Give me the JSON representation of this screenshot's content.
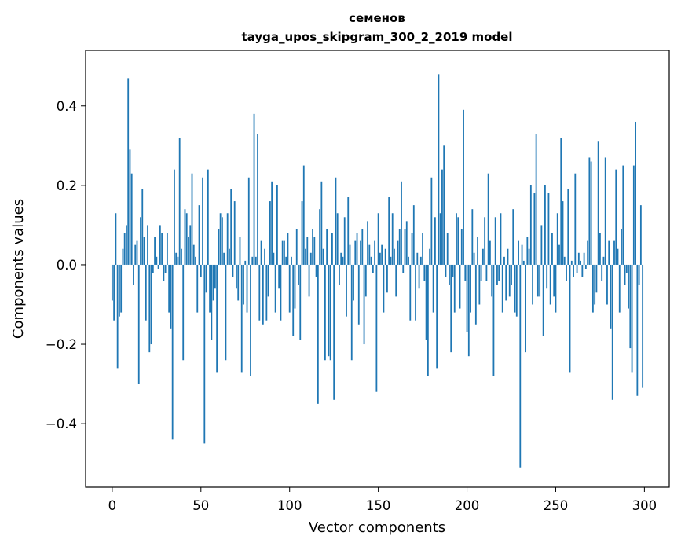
{
  "chart_data": {
    "type": "bar",
    "title": "семенов",
    "subtitle": "tayga_upos_skipgram_300_2_2019 model",
    "xlabel": "Vector components",
    "ylabel": "Components values",
    "xlim": [
      -15,
      314
    ],
    "ylim": [
      -0.56,
      0.54
    ],
    "xticks": [
      0,
      50,
      100,
      150,
      200,
      250,
      300
    ],
    "yticks": [
      -0.4,
      -0.2,
      0.0,
      0.2,
      0.4
    ],
    "ytick_labels": [
      "−0.4",
      "−0.2",
      "0.0",
      "0.2",
      "0.4"
    ],
    "bar_color": "#1f77b4",
    "grid": false,
    "x": [
      0,
      1,
      2,
      3,
      4,
      5,
      6,
      7,
      8,
      9,
      10,
      11,
      12,
      13,
      14,
      15,
      16,
      17,
      18,
      19,
      20,
      21,
      22,
      23,
      24,
      25,
      26,
      27,
      28,
      29,
      30,
      31,
      32,
      33,
      34,
      35,
      36,
      37,
      38,
      39,
      40,
      41,
      42,
      43,
      44,
      45,
      46,
      47,
      48,
      49,
      50,
      51,
      52,
      53,
      54,
      55,
      56,
      57,
      58,
      59,
      60,
      61,
      62,
      63,
      64,
      65,
      66,
      67,
      68,
      69,
      70,
      71,
      72,
      73,
      74,
      75,
      76,
      77,
      78,
      79,
      80,
      81,
      82,
      83,
      84,
      85,
      86,
      87,
      88,
      89,
      90,
      91,
      92,
      93,
      94,
      95,
      96,
      97,
      98,
      99,
      100,
      101,
      102,
      103,
      104,
      105,
      106,
      107,
      108,
      109,
      110,
      111,
      112,
      113,
      114,
      115,
      116,
      117,
      118,
      119,
      120,
      121,
      122,
      123,
      124,
      125,
      126,
      127,
      128,
      129,
      130,
      131,
      132,
      133,
      134,
      135,
      136,
      137,
      138,
      139,
      140,
      141,
      142,
      143,
      144,
      145,
      146,
      147,
      148,
      149,
      150,
      151,
      152,
      153,
      154,
      155,
      156,
      157,
      158,
      159,
      160,
      161,
      162,
      163,
      164,
      165,
      166,
      167,
      168,
      169,
      170,
      171,
      172,
      173,
      174,
      175,
      176,
      177,
      178,
      179,
      180,
      181,
      182,
      183,
      184,
      185,
      186,
      187,
      188,
      189,
      190,
      191,
      192,
      193,
      194,
      195,
      196,
      197,
      198,
      199,
      200,
      201,
      202,
      203,
      204,
      205,
      206,
      207,
      208,
      209,
      210,
      211,
      212,
      213,
      214,
      215,
      216,
      217,
      218,
      219,
      220,
      221,
      222,
      223,
      224,
      225,
      226,
      227,
      228,
      229,
      230,
      231,
      232,
      233,
      234,
      235,
      236,
      237,
      238,
      239,
      240,
      241,
      242,
      243,
      244,
      245,
      246,
      247,
      248,
      249,
      250,
      251,
      252,
      253,
      254,
      255,
      256,
      257,
      258,
      259,
      260,
      261,
      262,
      263,
      264,
      265,
      266,
      267,
      268,
      269,
      270,
      271,
      272,
      273,
      274,
      275,
      276,
      277,
      278,
      279,
      280,
      281,
      282,
      283,
      284,
      285,
      286,
      287,
      288,
      289,
      290,
      291,
      292,
      293,
      294,
      295,
      296,
      297,
      298,
      299
    ],
    "values": [
      -0.09,
      -0.14,
      0.13,
      -0.26,
      -0.13,
      -0.12,
      0.04,
      0.08,
      0.1,
      0.47,
      0.29,
      0.23,
      -0.05,
      0.05,
      0.06,
      -0.3,
      0.12,
      0.19,
      0.07,
      -0.14,
      0.1,
      -0.22,
      -0.2,
      -0.02,
      0.07,
      0.02,
      -0.01,
      0.1,
      0.08,
      -0.04,
      -0.02,
      0.08,
      -0.12,
      -0.16,
      -0.44,
      0.24,
      0.03,
      0.02,
      0.32,
      0.04,
      -0.24,
      0.14,
      0.13,
      0.07,
      0.1,
      0.23,
      0.05,
      0.02,
      -0.12,
      0.15,
      -0.03,
      0.22,
      -0.45,
      -0.07,
      0.24,
      -0.12,
      -0.19,
      -0.09,
      -0.06,
      -0.27,
      0.09,
      0.13,
      0.12,
      0.03,
      -0.24,
      0.13,
      0.04,
      0.19,
      -0.03,
      0.16,
      -0.06,
      -0.09,
      0.07,
      -0.27,
      -0.1,
      0.01,
      -0.12,
      0.22,
      -0.28,
      0.02,
      0.38,
      0.02,
      0.33,
      -0.14,
      0.06,
      -0.15,
      0.04,
      -0.14,
      -0.08,
      0.16,
      0.21,
      0.03,
      -0.12,
      0.2,
      -0.06,
      -0.14,
      0.06,
      0.06,
      0.02,
      0.08,
      -0.12,
      0.02,
      -0.18,
      -0.11,
      0.09,
      -0.05,
      -0.19,
      0.16,
      0.25,
      0.04,
      0.07,
      -0.08,
      0.03,
      0.09,
      0.07,
      -0.03,
      -0.35,
      0.14,
      0.21,
      0.04,
      -0.24,
      0.09,
      -0.23,
      -0.24,
      0.08,
      -0.34,
      0.22,
      0.13,
      -0.05,
      0.03,
      0.02,
      0.12,
      -0.13,
      0.17,
      0.05,
      -0.24,
      -0.09,
      0.06,
      0.08,
      -0.15,
      0.06,
      0.09,
      -0.2,
      -0.08,
      0.11,
      0.05,
      0.02,
      -0.02,
      0.06,
      -0.32,
      0.13,
      0.03,
      0.05,
      -0.12,
      0.04,
      -0.07,
      0.17,
      0.02,
      0.13,
      0.04,
      -0.08,
      0.06,
      0.09,
      0.21,
      -0.02,
      0.09,
      0.11,
      0.02,
      -0.14,
      0.08,
      0.15,
      -0.14,
      0.03,
      -0.06,
      0.02,
      0.08,
      -0.04,
      -0.19,
      -0.28,
      0.04,
      0.22,
      -0.12,
      0.12,
      -0.26,
      0.48,
      0.13,
      0.24,
      0.3,
      -0.03,
      0.08,
      -0.05,
      -0.22,
      -0.03,
      -0.12,
      0.13,
      0.12,
      -0.11,
      0.09,
      0.39,
      -0.04,
      -0.17,
      -0.23,
      -0.12,
      0.14,
      0.03,
      -0.15,
      0.07,
      -0.1,
      -0.04,
      0.04,
      0.12,
      -0.04,
      0.23,
      0.06,
      -0.08,
      -0.28,
      0.12,
      -0.05,
      -0.04,
      0.13,
      -0.12,
      0.02,
      -0.09,
      0.04,
      -0.08,
      -0.05,
      0.14,
      -0.12,
      -0.13,
      0.06,
      -0.51,
      0.05,
      0.01,
      -0.22,
      0.07,
      0.04,
      0.2,
      -0.1,
      0.18,
      0.33,
      -0.08,
      -0.08,
      0.1,
      -0.18,
      0.2,
      -0.06,
      0.18,
      -0.1,
      0.08,
      -0.08,
      -0.12,
      0.13,
      0.05,
      0.32,
      0.16,
      0.02,
      -0.04,
      0.19,
      -0.27,
      0.01,
      -0.03,
      0.23,
      -0.02,
      0.03,
      0.01,
      -0.03,
      0.03,
      -0.01,
      0.06,
      0.27,
      0.26,
      -0.12,
      -0.1,
      -0.07,
      0.31,
      0.08,
      -0.04,
      0.02,
      0.27,
      -0.1,
      0.06,
      -0.16,
      -0.34,
      0.06,
      0.24,
      0.04,
      -0.12,
      0.09,
      0.25,
      -0.05,
      -0.02,
      -0.11,
      -0.21,
      -0.27,
      0.25,
      0.36,
      -0.33,
      -0.05,
      0.15,
      -0.31
    ]
  }
}
